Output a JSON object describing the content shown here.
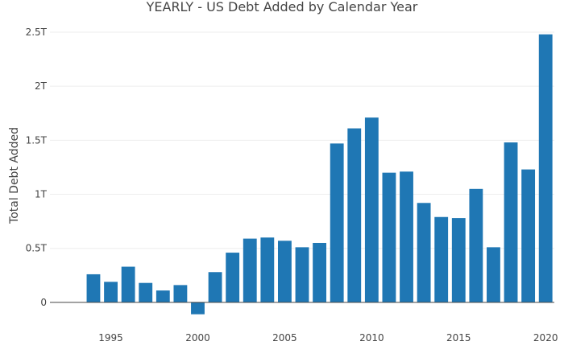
{
  "chart_data": {
    "type": "bar",
    "title": "YEARLY - US Debt Added by Calendar Year",
    "xlabel": "",
    "ylabel": "Total Debt Added",
    "bar_color": "#1f77b4",
    "grid": true,
    "x_range": [
      1991.5,
      2020.5
    ],
    "ylim": [
      -0.12,
      2.5
    ],
    "x_ticks": [
      {
        "value": 1995,
        "label": "1995"
      },
      {
        "value": 2000,
        "label": "2000"
      },
      {
        "value": 2005,
        "label": "2005"
      },
      {
        "value": 2010,
        "label": "2010"
      },
      {
        "value": 2015,
        "label": "2015"
      },
      {
        "value": 2020,
        "label": "2020"
      }
    ],
    "y_ticks": [
      {
        "value": 0,
        "label": "0"
      },
      {
        "value": 0.5,
        "label": "0.5T"
      },
      {
        "value": 1,
        "label": "1T"
      },
      {
        "value": 1.5,
        "label": "1.5T"
      },
      {
        "value": 2,
        "label": "2T"
      },
      {
        "value": 2.5,
        "label": "2.5T"
      }
    ],
    "x": [
      1994,
      1995,
      1996,
      1997,
      1998,
      1999,
      2000,
      2001,
      2002,
      2003,
      2004,
      2005,
      2006,
      2007,
      2008,
      2009,
      2010,
      2011,
      2012,
      2013,
      2014,
      2015,
      2016,
      2017,
      2018,
      2019,
      2020
    ],
    "values": [
      0.26,
      0.19,
      0.33,
      0.18,
      0.11,
      0.16,
      -0.11,
      0.28,
      0.46,
      0.59,
      0.6,
      0.57,
      0.51,
      0.55,
      1.47,
      1.61,
      1.71,
      1.2,
      1.21,
      0.92,
      0.79,
      0.78,
      1.05,
      0.51,
      1.48,
      1.23,
      2.48
    ]
  }
}
